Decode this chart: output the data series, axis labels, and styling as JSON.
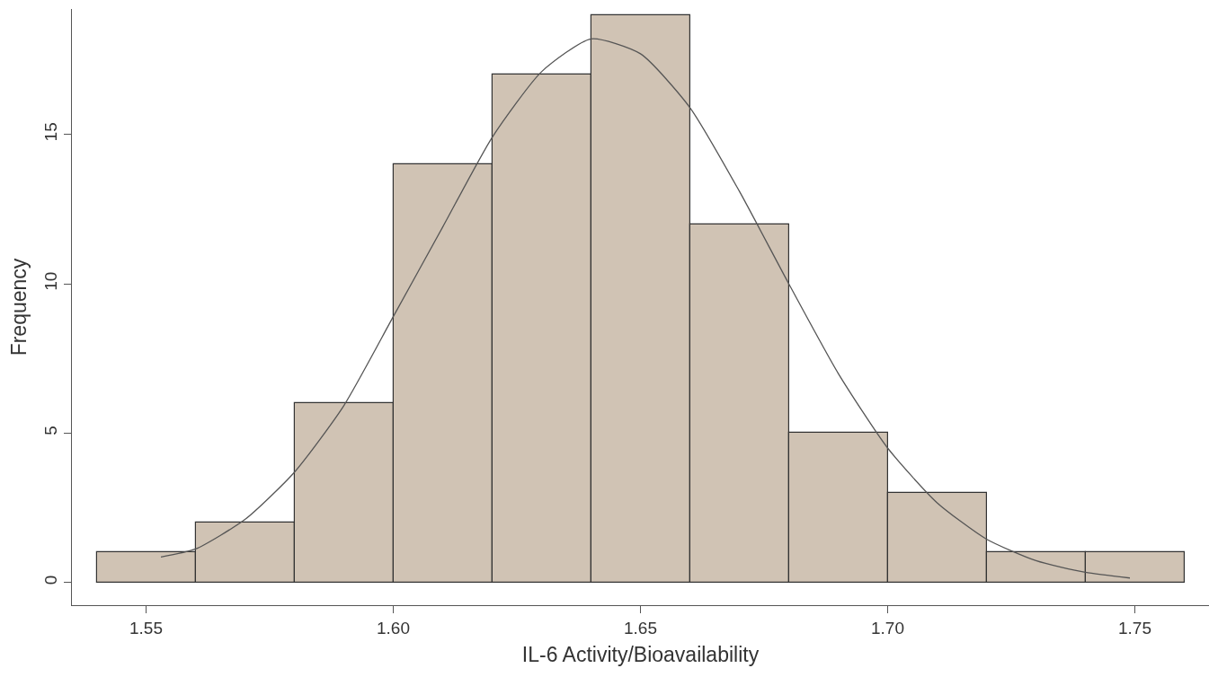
{
  "chart_data": {
    "type": "histogram",
    "xlabel": "IL-6 Activity/Bioavailability",
    "ylabel": "Frequency",
    "bins": [
      1.54,
      1.56,
      1.58,
      1.6,
      1.62,
      1.64,
      1.66,
      1.68,
      1.7,
      1.72,
      1.74,
      1.76
    ],
    "values": [
      1,
      2,
      6,
      14,
      17,
      19,
      12,
      5,
      3,
      1,
      1
    ],
    "color": "#d0c3b4",
    "series": [
      {
        "type": "line",
        "color": "#555555",
        "x": [
          1.553,
          1.56,
          1.57,
          1.58,
          1.59,
          1.6,
          1.61,
          1.62,
          1.63,
          1.64,
          1.65,
          1.66,
          1.67,
          1.68,
          1.69,
          1.7,
          1.71,
          1.72,
          1.73,
          1.74,
          1.749
        ],
        "values": [
          0.85,
          1.12,
          2.11,
          3.69,
          5.92,
          8.9,
          11.9,
          14.9,
          17.1,
          18.2,
          17.7,
          15.9,
          13.1,
          10,
          7,
          4.5,
          2.67,
          1.45,
          0.73,
          0.34,
          0.15
        ]
      }
    ],
    "xlim": [
      1.535,
      1.765
    ],
    "ylim": [
      -0.76,
      19.2
    ],
    "xticks": [
      {
        "value": 1.55,
        "label": "1.55"
      },
      {
        "value": 1.6,
        "label": "1.60"
      },
      {
        "value": 1.65,
        "label": "1.65"
      },
      {
        "value": 1.7,
        "label": "1.70"
      },
      {
        "value": 1.75,
        "label": "1.75"
      }
    ],
    "yticks": [
      0,
      5,
      10,
      15
    ],
    "grid": false,
    "marker": "none",
    "line_style": "solid"
  }
}
